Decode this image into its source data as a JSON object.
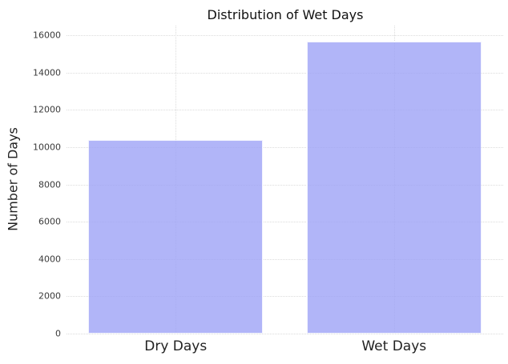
{
  "chart_data": {
    "type": "bar",
    "title": "Distribution of Wet Days",
    "xlabel": "",
    "ylabel": "Number of Days",
    "categories": [
      "Dry Days",
      "Wet Days"
    ],
    "values": [
      10400,
      15650
    ],
    "ylim": [
      0,
      16520
    ],
    "yticks": [
      0,
      2000,
      4000,
      6000,
      8000,
      10000,
      12000,
      14000,
      16000
    ],
    "legend": "none",
    "grid": {
      "horizontal": true,
      "vertical_at_category_centers": true,
      "style": "dotted"
    },
    "bar_width_fraction": 0.8,
    "colors": {
      "background": "#ffffff",
      "bar_fill": "#9da2f6",
      "bar_alpha": 0.8,
      "bar_edge": "#ffffff",
      "grid": "#dcdcdc",
      "title_text": "#111111",
      "ylabel_text": "#222222",
      "ytick_text": "#3a3a3a",
      "xtick_text": "#222222"
    }
  }
}
